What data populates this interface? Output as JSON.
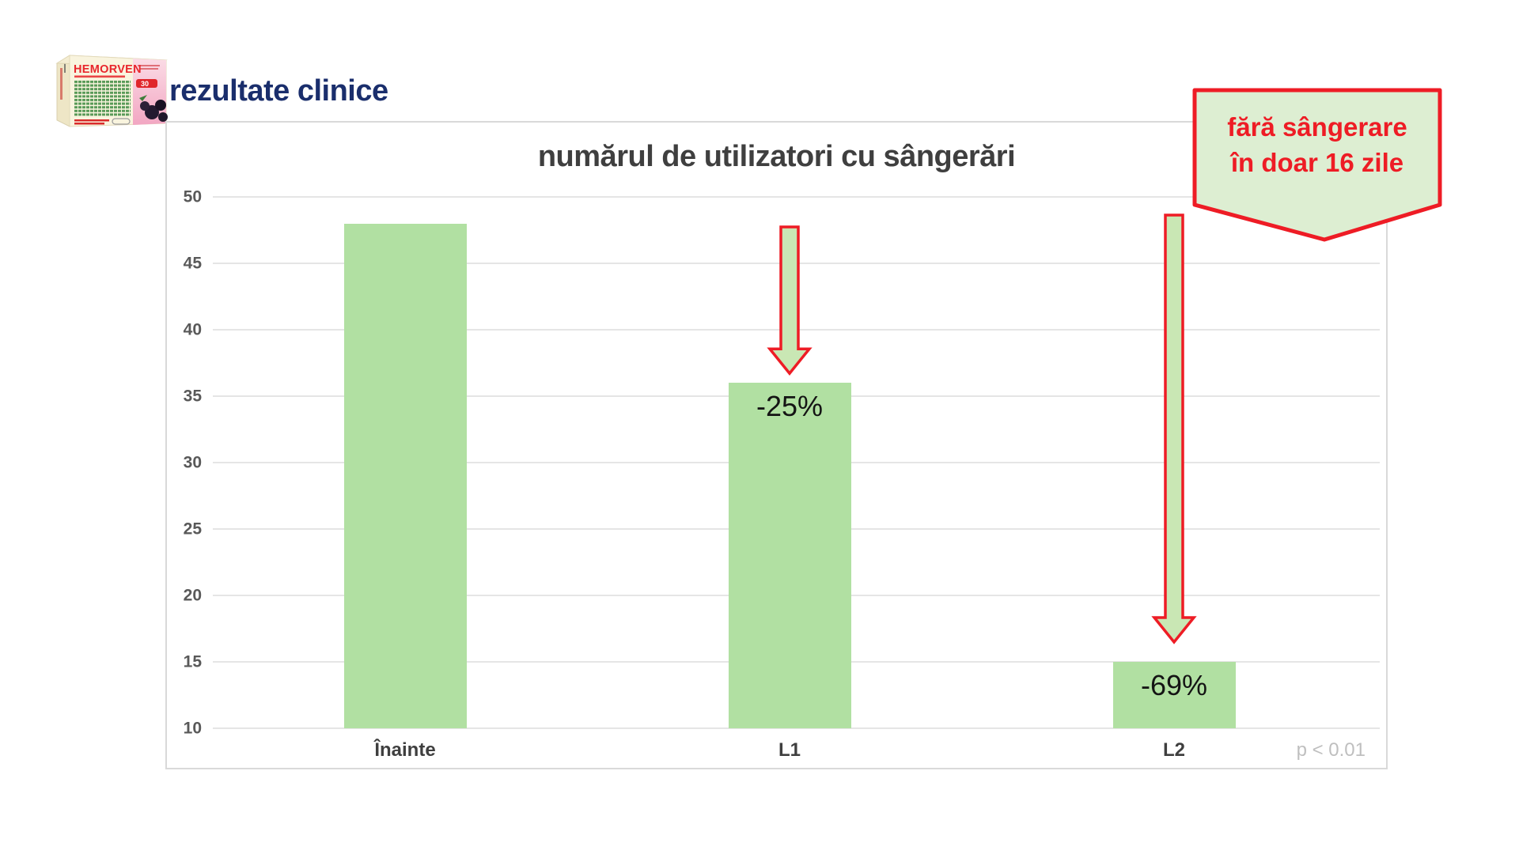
{
  "header": {
    "title": "rezultate clinice",
    "product_box": {
      "brand": "HEMORVEN",
      "badge": "30"
    }
  },
  "chart_data": {
    "type": "bar",
    "title": "numărul de utilizatori cu sângerări",
    "categories": [
      "Înainte",
      "L1",
      "L2"
    ],
    "values": [
      48,
      36,
      15
    ],
    "bar_labels": [
      "",
      "-25%",
      "-69%"
    ],
    "ylim": [
      10,
      50
    ],
    "y_ticks": [
      50,
      45,
      40,
      35,
      30,
      25,
      20,
      15,
      10
    ],
    "grid": true,
    "legend": "none",
    "bar_color": "#b1e0a2",
    "annotations": [
      {
        "target": "L1",
        "type": "down-arrow"
      },
      {
        "target": "L2",
        "type": "down-arrow"
      }
    ],
    "footnote": "p < 0.01"
  },
  "callout": {
    "text_line1": "fără sângerare",
    "text_line2": "în doar 16 zile"
  },
  "colors": {
    "accent_red": "#ee1c25",
    "bar_green": "#b1e0a2",
    "arrow_green": "#c9e7b4",
    "callout_green": "#ddeed2",
    "navy": "#1a2e6c"
  }
}
